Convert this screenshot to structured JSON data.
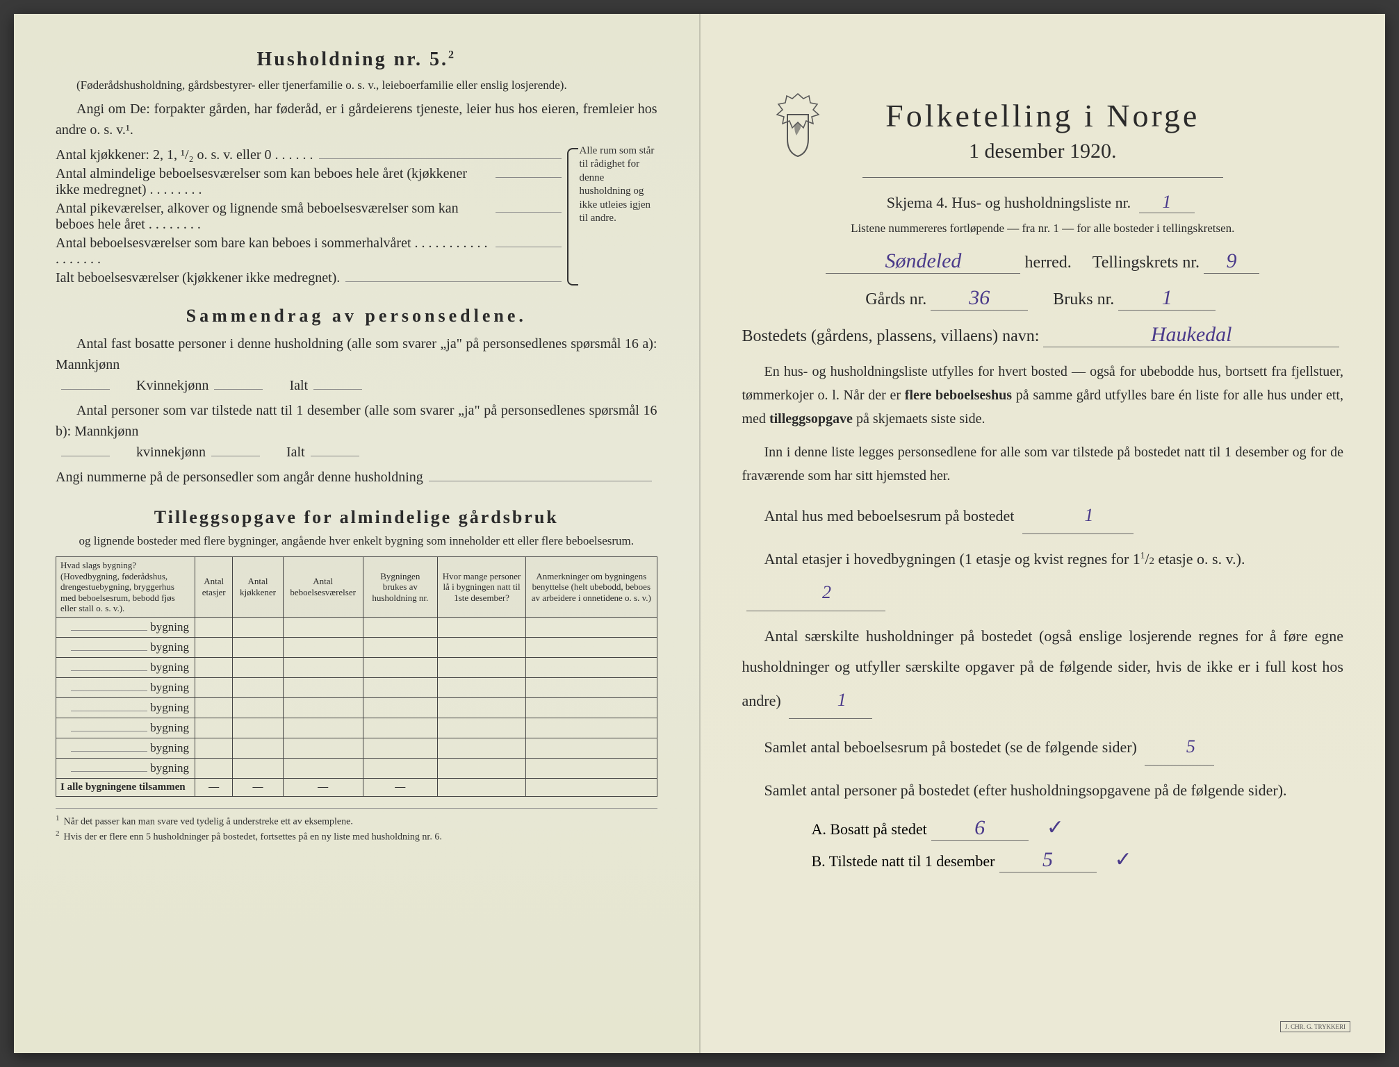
{
  "colors": {
    "paper": "#e8e8d8",
    "paper_right": "#ebe9d6",
    "ink": "#2a2a2a",
    "handwriting": "#4a3a8a",
    "border": "#444"
  },
  "left": {
    "heading": "Husholdning nr. 5.",
    "heading_sup": "2",
    "sub1": "(Føderådshusholdning, gårdsbestyrer- eller tjenerfamilie o. s. v., leieboerfamilie eller enslig losjerende).",
    "sub2": "Angi om De: forpakter gården, har føderåd, er i gårdeierens tjeneste, leier hus hos eieren, fremleier hos andre o. s. v.¹.",
    "line_kjokken": "Antal kjøkkener: 2, 1, ¹/₂ o. s. v. eller 0 . . . . . .",
    "line_alm": "Antal almindelige beboelsesværelser som kan beboes hele året (kjøkkener ikke medregnet) . . . . . . . .",
    "line_pike": "Antal pikeværelser, alkover og lignende små beboelsesværelser som kan beboes hele året . . . . . . . .",
    "line_sommer": "Antal beboelsesværelser som bare kan beboes i sommerhalvåret . . . . . . . . . . . . . . . . . .",
    "line_ialt": "Ialt beboelsesværelser (kjøkkener ikke medregnet).",
    "brace_text": "Alle rum som står til rådighet for denne husholdning og ikke utleies igjen til andre.",
    "sammendrag_title": "Sammendrag av personsedlene.",
    "sammendrag_p1a": "Antal fast bosatte personer i denne husholdning (alle som svarer „ja\" på personsedlenes spørsmål 16 a): Mannkjønn",
    "sammendrag_p1b": "Kvinnekjønn",
    "sammendrag_p1c": "Ialt",
    "sammendrag_p2a": "Antal personer som var tilstede natt til 1 desember (alle som svarer „ja\" på personsedlenes spørsmål 16 b): Mannkjønn",
    "sammendrag_p2b": "kvinnekjønn",
    "sammendrag_p2c": "Ialt",
    "sammendrag_p3": "Angi nummerne på de personsedler som angår denne husholdning",
    "tillegg_title": "Tilleggsopgave for almindelige gårdsbruk",
    "tillegg_sub": "og lignende bosteder med flere bygninger, angående hver enkelt bygning som inneholder ett eller flere beboelsesrum.",
    "table": {
      "headers": [
        "Hvad slags bygning? (Hovedbygning, føderådshus, drengestuebygning, bryggerhus med beboelsesrum, bebodd fjøs eller stall o. s. v.).",
        "Antal etasjer",
        "Antal kjøkkener",
        "Antal beboelsesværelser",
        "Bygningen brukes av husholdning nr.",
        "Hvor mange personer lå i bygningen natt til 1ste desember?",
        "Anmerkninger om bygningens benyttelse (helt ubebodd, beboes av arbeidere i onnetidene o. s. v.)"
      ],
      "row_label": "bygning",
      "row_count": 8,
      "total_label": "I alle bygningene tilsammen"
    },
    "footnotes": [
      "Når det passer kan man svare ved tydelig å understreke ett av eksemplene.",
      "Hvis der er flere enn 5 husholdninger på bostedet, fortsettes på en ny liste med husholdning nr. 6."
    ]
  },
  "right": {
    "title": "Folketelling i Norge",
    "date": "1 desember 1920.",
    "skjema_label": "Skjema 4.  Hus- og husholdningsliste nr.",
    "skjema_nr": "1",
    "instr": "Listene nummereres fortløpende — fra nr. 1 — for alle bosteder i tellingskretsen.",
    "herred_value": "Søndeled",
    "herred_label": "herred.",
    "krets_label": "Tellingskrets nr.",
    "krets_nr": "9",
    "gards_label": "Gårds nr.",
    "gards_nr": "36",
    "bruks_label": "Bruks nr.",
    "bruks_nr": "1",
    "bosted_label": "Bostedets (gårdens, plassens, villaens) navn:",
    "bosted_value": "Haukedal",
    "para1": "En hus- og husholdningsliste utfylles for hvert bosted — også for ubebodde hus, bortsett fra fjellstuer, tømmerkojer o. l. Når der er flere beboelseshus på samme gård utfylles bare én liste for alle hus under ett, med tilleggsopgave på skjemaets siste side.",
    "para2": "Inn i denne liste legges personsedlene for alle som var tilstede på bostedet natt til 1 desember og for de fraværende som har sitt hjemsted her.",
    "q1_label": "Antal hus med beboelsesrum på bostedet",
    "q1_value": "1",
    "q2_label_a": "Antal etasjer i hovedbygningen (1 etasje og kvist regnes for 1",
    "q2_label_b": "etasje o. s. v.).",
    "q2_value": "2",
    "q3_label": "Antal særskilte husholdninger på bostedet (også enslige losjerende regnes for å føre egne husholdninger og utfyller særskilte opgaver på de følgende sider, hvis de ikke er i full kost hos andre)",
    "q3_value": "1",
    "q4_label": "Samlet antal beboelsesrum på bostedet (se de følgende sider)",
    "q4_value": "5",
    "q5_label": "Samlet antal personer på bostedet (efter husholdningsopgavene på de følgende sider).",
    "qA_label": "A.  Bosatt på stedet",
    "qA_value": "6",
    "qB_label": "B.  Tilstede natt til 1 desember",
    "qB_value": "5",
    "printer": "J. CHR. G. TRYKKERI"
  }
}
